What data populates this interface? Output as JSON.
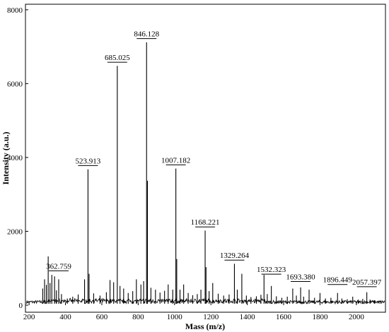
{
  "chart_data": {
    "type": "line",
    "title": "",
    "xlabel": "Mass (m/z)",
    "ylabel": "Intensity (a.u.)",
    "xlim": [
      180,
      2160
    ],
    "ylim": [
      0,
      8150
    ],
    "x_ticks": [
      200,
      400,
      600,
      800,
      1000,
      1200,
      1400,
      1600,
      1800,
      2000
    ],
    "y_ticks": [
      0,
      2000,
      4000,
      6000,
      8000
    ],
    "grid": false,
    "legend": "none",
    "series": [
      {
        "values": [
          {
            "x": 275,
            "y": 450
          },
          {
            "x": 285,
            "y": 700
          },
          {
            "x": 295,
            "y": 550
          },
          {
            "x": 305,
            "y": 1320
          },
          {
            "x": 315,
            "y": 600
          },
          {
            "x": 325,
            "y": 820
          },
          {
            "x": 340,
            "y": 780
          },
          {
            "x": 350,
            "y": 400
          },
          {
            "x": 362.759,
            "y": 700
          },
          {
            "x": 378,
            "y": 300
          },
          {
            "x": 410,
            "y": 180
          },
          {
            "x": 440,
            "y": 230
          },
          {
            "x": 470,
            "y": 290
          },
          {
            "x": 505,
            "y": 700
          },
          {
            "x": 523.913,
            "y": 3680
          },
          {
            "x": 530,
            "y": 850
          },
          {
            "x": 555,
            "y": 320
          },
          {
            "x": 590,
            "y": 260
          },
          {
            "x": 625,
            "y": 350
          },
          {
            "x": 645,
            "y": 680
          },
          {
            "x": 665,
            "y": 620
          },
          {
            "x": 685.025,
            "y": 6480
          },
          {
            "x": 700,
            "y": 520
          },
          {
            "x": 720,
            "y": 450
          },
          {
            "x": 745,
            "y": 330
          },
          {
            "x": 770,
            "y": 380
          },
          {
            "x": 790,
            "y": 700
          },
          {
            "x": 815,
            "y": 560
          },
          {
            "x": 830,
            "y": 650
          },
          {
            "x": 846.128,
            "y": 7120
          },
          {
            "x": 851,
            "y": 3370
          },
          {
            "x": 870,
            "y": 470
          },
          {
            "x": 895,
            "y": 420
          },
          {
            "x": 920,
            "y": 340
          },
          {
            "x": 945,
            "y": 390
          },
          {
            "x": 965,
            "y": 560
          },
          {
            "x": 990,
            "y": 420
          },
          {
            "x": 1007.182,
            "y": 3700
          },
          {
            "x": 1012,
            "y": 1250
          },
          {
            "x": 1030,
            "y": 420
          },
          {
            "x": 1050,
            "y": 560
          },
          {
            "x": 1075,
            "y": 330
          },
          {
            "x": 1100,
            "y": 270
          },
          {
            "x": 1125,
            "y": 300
          },
          {
            "x": 1145,
            "y": 420
          },
          {
            "x": 1168.221,
            "y": 2020
          },
          {
            "x": 1173,
            "y": 1030
          },
          {
            "x": 1190,
            "y": 380
          },
          {
            "x": 1210,
            "y": 600
          },
          {
            "x": 1240,
            "y": 310
          },
          {
            "x": 1270,
            "y": 260
          },
          {
            "x": 1300,
            "y": 290
          },
          {
            "x": 1329.264,
            "y": 1120
          },
          {
            "x": 1345,
            "y": 420
          },
          {
            "x": 1370,
            "y": 850
          },
          {
            "x": 1395,
            "y": 260
          },
          {
            "x": 1420,
            "y": 220
          },
          {
            "x": 1450,
            "y": 240
          },
          {
            "x": 1475,
            "y": 280
          },
          {
            "x": 1492,
            "y": 820
          },
          {
            "x": 1510,
            "y": 300
          },
          {
            "x": 1532.323,
            "y": 520
          },
          {
            "x": 1560,
            "y": 240
          },
          {
            "x": 1590,
            "y": 200
          },
          {
            "x": 1620,
            "y": 230
          },
          {
            "x": 1650,
            "y": 450
          },
          {
            "x": 1670,
            "y": 260
          },
          {
            "x": 1693.38,
            "y": 480
          },
          {
            "x": 1710,
            "y": 230
          },
          {
            "x": 1740,
            "y": 420
          },
          {
            "x": 1770,
            "y": 200
          },
          {
            "x": 1800,
            "y": 330
          },
          {
            "x": 1830,
            "y": 180
          },
          {
            "x": 1860,
            "y": 200
          },
          {
            "x": 1896.449,
            "y": 330
          },
          {
            "x": 1920,
            "y": 180
          },
          {
            "x": 1950,
            "y": 160
          },
          {
            "x": 1980,
            "y": 230
          },
          {
            "x": 2010,
            "y": 150
          },
          {
            "x": 2035,
            "y": 170
          },
          {
            "x": 2057.397,
            "y": 350
          },
          {
            "x": 2075,
            "y": 150
          },
          {
            "x": 2100,
            "y": 130
          },
          {
            "x": 2130,
            "y": 120
          }
        ]
      }
    ],
    "annotations": [
      {
        "label": "362.759",
        "x": 362.759,
        "y": 930
      },
      {
        "label": "523.913",
        "x": 523.913,
        "y": 3780
      },
      {
        "label": "685.025",
        "x": 685.025,
        "y": 6580
      },
      {
        "label": "846.128",
        "x": 846.128,
        "y": 7220
      },
      {
        "label": "1007.182",
        "x": 1007.182,
        "y": 3800
      },
      {
        "label": "1168.221",
        "x": 1168.221,
        "y": 2120
      },
      {
        "label": "1329.264",
        "x": 1329.264,
        "y": 1220
      },
      {
        "label": "1532.323",
        "x": 1532.323,
        "y": 840
      },
      {
        "label": "1693.380",
        "x": 1693.38,
        "y": 640
      },
      {
        "label": "1896.449",
        "x": 1896.449,
        "y": 560
      },
      {
        "label": "2057.397",
        "x": 2057.397,
        "y": 500
      }
    ]
  }
}
